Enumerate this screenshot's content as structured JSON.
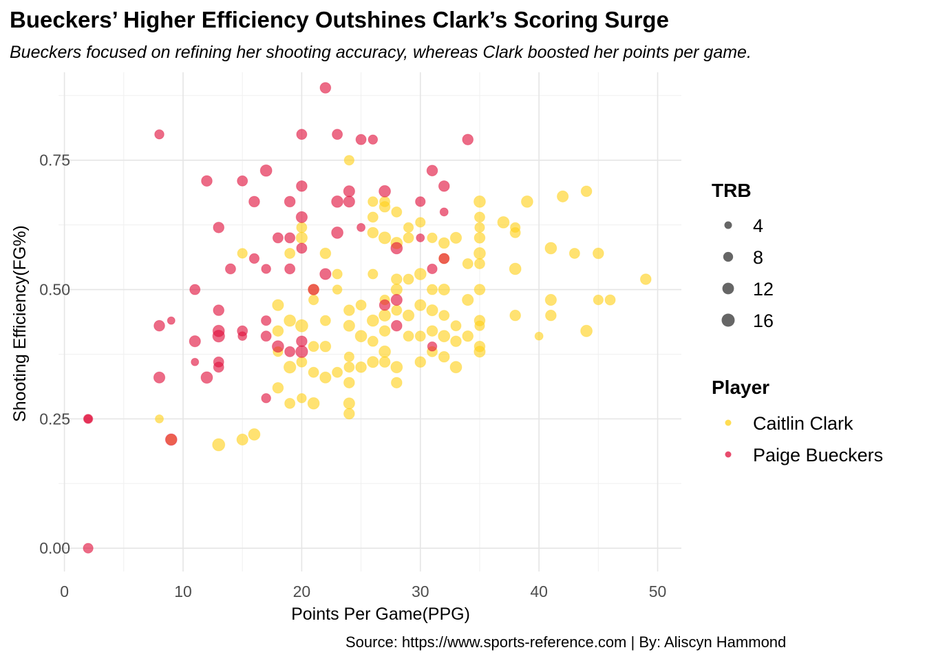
{
  "title": "Bueckers’ Higher Efficiency Outshines Clark’s Scoring Surge",
  "subtitle": "Bueckers focused on refining her shooting accuracy, whereas Clark boosted her points per game.",
  "caption": "Source: https://www.sports-reference.com | By: Aliscyn Hammond",
  "chart_data": {
    "type": "scatter",
    "title": "Bueckers’ Higher Efficiency Outshines Clark’s Scoring Surge",
    "subtitle": "Bueckers focused on refining her shooting accuracy, whereas Clark boosted her points per game.",
    "xlabel": "Points Per Game(PPG)",
    "ylabel": "Shooting Efficiency(FG%)",
    "xlim": [
      -0.5,
      52
    ],
    "ylim": [
      -0.045,
      0.92
    ],
    "x_ticks": [
      0,
      10,
      20,
      30,
      40,
      50
    ],
    "x_tick_labels": [
      "0",
      "10",
      "20",
      "30",
      "40",
      "50"
    ],
    "y_ticks": [
      0.0,
      0.25,
      0.5,
      0.75
    ],
    "y_tick_labels": [
      "0.00",
      "0.25",
      "0.50",
      "0.75"
    ],
    "grid": true,
    "legend_position": "right",
    "size_legend": {
      "title": "TRB",
      "values": [
        4,
        8,
        12,
        16
      ],
      "labels": [
        "4",
        "8",
        "12",
        "16"
      ]
    },
    "color_legend": {
      "title": "Player",
      "labels": [
        "Caitlin Clark",
        "Paige Bueckers"
      ]
    },
    "colors": {
      "Caitlin Clark": "#FFD11A",
      "Paige Bueckers": "#E0103C"
    },
    "series": [
      {
        "name": "Caitlin Clark",
        "color": "#FFD11A",
        "points": [
          [
            8,
            0.25,
            5
          ],
          [
            9,
            0.21,
            10
          ],
          [
            13,
            0.2,
            14
          ],
          [
            15,
            0.21,
            11
          ],
          [
            16,
            0.22,
            12
          ],
          [
            15,
            0.57,
            8
          ],
          [
            18,
            0.31,
            10
          ],
          [
            19,
            0.57,
            9
          ],
          [
            19,
            0.28,
            9
          ],
          [
            20,
            0.29,
            7
          ],
          [
            21,
            0.28,
            12
          ],
          [
            18,
            0.42,
            10
          ],
          [
            18,
            0.47,
            11
          ],
          [
            18,
            0.38,
            8
          ],
          [
            19,
            0.35,
            13
          ],
          [
            19,
            0.44,
            12
          ],
          [
            20,
            0.36,
            9
          ],
          [
            20,
            0.43,
            14
          ],
          [
            20,
            0.6,
            11
          ],
          [
            20,
            0.62,
            9
          ],
          [
            21,
            0.39,
            9
          ],
          [
            21,
            0.48,
            8
          ],
          [
            21,
            0.5,
            10
          ],
          [
            21,
            0.34,
            9
          ],
          [
            22,
            0.33,
            11
          ],
          [
            22,
            0.44,
            9
          ],
          [
            22,
            0.57,
            10
          ],
          [
            22,
            0.39,
            10
          ],
          [
            23,
            0.34,
            9
          ],
          [
            23,
            0.5,
            7
          ],
          [
            23,
            0.53,
            8
          ],
          [
            24,
            0.26,
            10
          ],
          [
            24,
            0.28,
            11
          ],
          [
            24,
            0.32,
            10
          ],
          [
            24,
            0.35,
            9
          ],
          [
            24,
            0.37,
            8
          ],
          [
            24,
            0.43,
            11
          ],
          [
            24,
            0.46,
            10
          ],
          [
            24,
            0.75,
            8
          ],
          [
            25,
            0.35,
            10
          ],
          [
            25,
            0.41,
            12
          ],
          [
            25,
            0.47,
            9
          ],
          [
            26,
            0.36,
            11
          ],
          [
            26,
            0.4,
            9
          ],
          [
            26,
            0.44,
            12
          ],
          [
            26,
            0.53,
            8
          ],
          [
            26,
            0.61,
            10
          ],
          [
            26,
            0.64,
            9
          ],
          [
            26,
            0.67,
            8
          ],
          [
            27,
            0.36,
            10
          ],
          [
            27,
            0.38,
            12
          ],
          [
            27,
            0.42,
            10
          ],
          [
            27,
            0.45,
            12
          ],
          [
            27,
            0.48,
            8
          ],
          [
            27,
            0.6,
            13
          ],
          [
            27,
            0.66,
            10
          ],
          [
            27,
            0.67,
            9
          ],
          [
            28,
            0.32,
            10
          ],
          [
            28,
            0.35,
            12
          ],
          [
            28,
            0.46,
            9
          ],
          [
            28,
            0.5,
            11
          ],
          [
            28,
            0.52,
            10
          ],
          [
            28,
            0.59,
            12
          ],
          [
            28,
            0.65,
            9
          ],
          [
            29,
            0.41,
            9
          ],
          [
            29,
            0.45,
            11
          ],
          [
            29,
            0.52,
            9
          ],
          [
            29,
            0.6,
            9
          ],
          [
            29,
            0.62,
            8
          ],
          [
            30,
            0.36,
            10
          ],
          [
            30,
            0.41,
            9
          ],
          [
            30,
            0.47,
            11
          ],
          [
            30,
            0.53,
            12
          ],
          [
            30,
            0.63,
            8
          ],
          [
            31,
            0.38,
            9
          ],
          [
            31,
            0.42,
            10
          ],
          [
            31,
            0.46,
            11
          ],
          [
            31,
            0.5,
            9
          ],
          [
            31,
            0.6,
            8
          ],
          [
            32,
            0.37,
            10
          ],
          [
            32,
            0.41,
            12
          ],
          [
            32,
            0.45,
            9
          ],
          [
            32,
            0.5,
            11
          ],
          [
            32,
            0.56,
            9
          ],
          [
            32,
            0.59,
            10
          ],
          [
            33,
            0.35,
            12
          ],
          [
            33,
            0.4,
            10
          ],
          [
            33,
            0.43,
            9
          ],
          [
            33,
            0.6,
            11
          ],
          [
            34,
            0.41,
            10
          ],
          [
            34,
            0.48,
            11
          ],
          [
            34,
            0.55,
            9
          ],
          [
            35,
            0.38,
            11
          ],
          [
            35,
            0.39,
            10
          ],
          [
            35,
            0.43,
            8
          ],
          [
            35,
            0.44,
            10
          ],
          [
            35,
            0.5,
            10
          ],
          [
            35,
            0.55,
            9
          ],
          [
            35,
            0.57,
            12
          ],
          [
            35,
            0.6,
            10
          ],
          [
            35,
            0.62,
            8
          ],
          [
            35,
            0.64,
            9
          ],
          [
            35,
            0.67,
            12
          ],
          [
            37,
            0.63,
            12
          ],
          [
            38,
            0.45,
            10
          ],
          [
            38,
            0.54,
            12
          ],
          [
            38,
            0.61,
            9
          ],
          [
            38,
            0.62,
            8
          ],
          [
            39,
            0.67,
            12
          ],
          [
            40,
            0.41,
            5
          ],
          [
            41,
            0.45,
            10
          ],
          [
            41,
            0.48,
            11
          ],
          [
            41,
            0.58,
            12
          ],
          [
            42,
            0.68,
            11
          ],
          [
            43,
            0.57,
            9
          ],
          [
            44,
            0.42,
            12
          ],
          [
            44,
            0.69,
            10
          ],
          [
            45,
            0.48,
            8
          ],
          [
            45,
            0.57,
            10
          ],
          [
            46,
            0.48,
            9
          ],
          [
            49,
            0.52,
            10
          ]
        ]
      },
      {
        "name": "Paige Bueckers",
        "color": "#E0103C",
        "points": [
          [
            2,
            0.0,
            8
          ],
          [
            2,
            0.25,
            7
          ],
          [
            2,
            0.25,
            5
          ],
          [
            8,
            0.33,
            11
          ],
          [
            8,
            0.43,
            10
          ],
          [
            8,
            0.8,
            7
          ],
          [
            9,
            0.21,
            12
          ],
          [
            9,
            0.44,
            4
          ],
          [
            11,
            0.36,
            4
          ],
          [
            11,
            0.4,
            11
          ],
          [
            11,
            0.5,
            9
          ],
          [
            12,
            0.33,
            12
          ],
          [
            12,
            0.71,
            10
          ],
          [
            13,
            0.35,
            9
          ],
          [
            13,
            0.36,
            9
          ],
          [
            13,
            0.41,
            13
          ],
          [
            13,
            0.42,
            12
          ],
          [
            13,
            0.46,
            10
          ],
          [
            13,
            0.62,
            10
          ],
          [
            14,
            0.54,
            9
          ],
          [
            15,
            0.41,
            6
          ],
          [
            15,
            0.42,
            9
          ],
          [
            15,
            0.71,
            9
          ],
          [
            16,
            0.56,
            8
          ],
          [
            16,
            0.67,
            10
          ],
          [
            17,
            0.29,
            7
          ],
          [
            17,
            0.41,
            9
          ],
          [
            17,
            0.44,
            8
          ],
          [
            17,
            0.54,
            7
          ],
          [
            17,
            0.73,
            12
          ],
          [
            18,
            0.39,
            12
          ],
          [
            18,
            0.6,
            9
          ],
          [
            19,
            0.38,
            9
          ],
          [
            19,
            0.6,
            9
          ],
          [
            19,
            0.54,
            9
          ],
          [
            19,
            0.67,
            10
          ],
          [
            20,
            0.38,
            13
          ],
          [
            20,
            0.4,
            10
          ],
          [
            20,
            0.58,
            9
          ],
          [
            20,
            0.64,
            11
          ],
          [
            20,
            0.7,
            10
          ],
          [
            20,
            0.8,
            9
          ],
          [
            21,
            0.5,
            10
          ],
          [
            22,
            0.53,
            11
          ],
          [
            22,
            0.89,
            10
          ],
          [
            23,
            0.61,
            12
          ],
          [
            23,
            0.67,
            12
          ],
          [
            23,
            0.8,
            9
          ],
          [
            24,
            0.67,
            11
          ],
          [
            24,
            0.69,
            11
          ],
          [
            25,
            0.62,
            5
          ],
          [
            25,
            0.79,
            9
          ],
          [
            26,
            0.79,
            7
          ],
          [
            27,
            0.47,
            10
          ],
          [
            27,
            0.69,
            12
          ],
          [
            28,
            0.43,
            10
          ],
          [
            28,
            0.48,
            11
          ],
          [
            28,
            0.58,
            12
          ],
          [
            30,
            0.6,
            5
          ],
          [
            30,
            0.67,
            8
          ],
          [
            31,
            0.39,
            7
          ],
          [
            31,
            0.54,
            8
          ],
          [
            31,
            0.73,
            10
          ],
          [
            32,
            0.56,
            9
          ],
          [
            32,
            0.65,
            5
          ],
          [
            32,
            0.7,
            10
          ],
          [
            34,
            0.79,
            10
          ]
        ]
      }
    ]
  }
}
